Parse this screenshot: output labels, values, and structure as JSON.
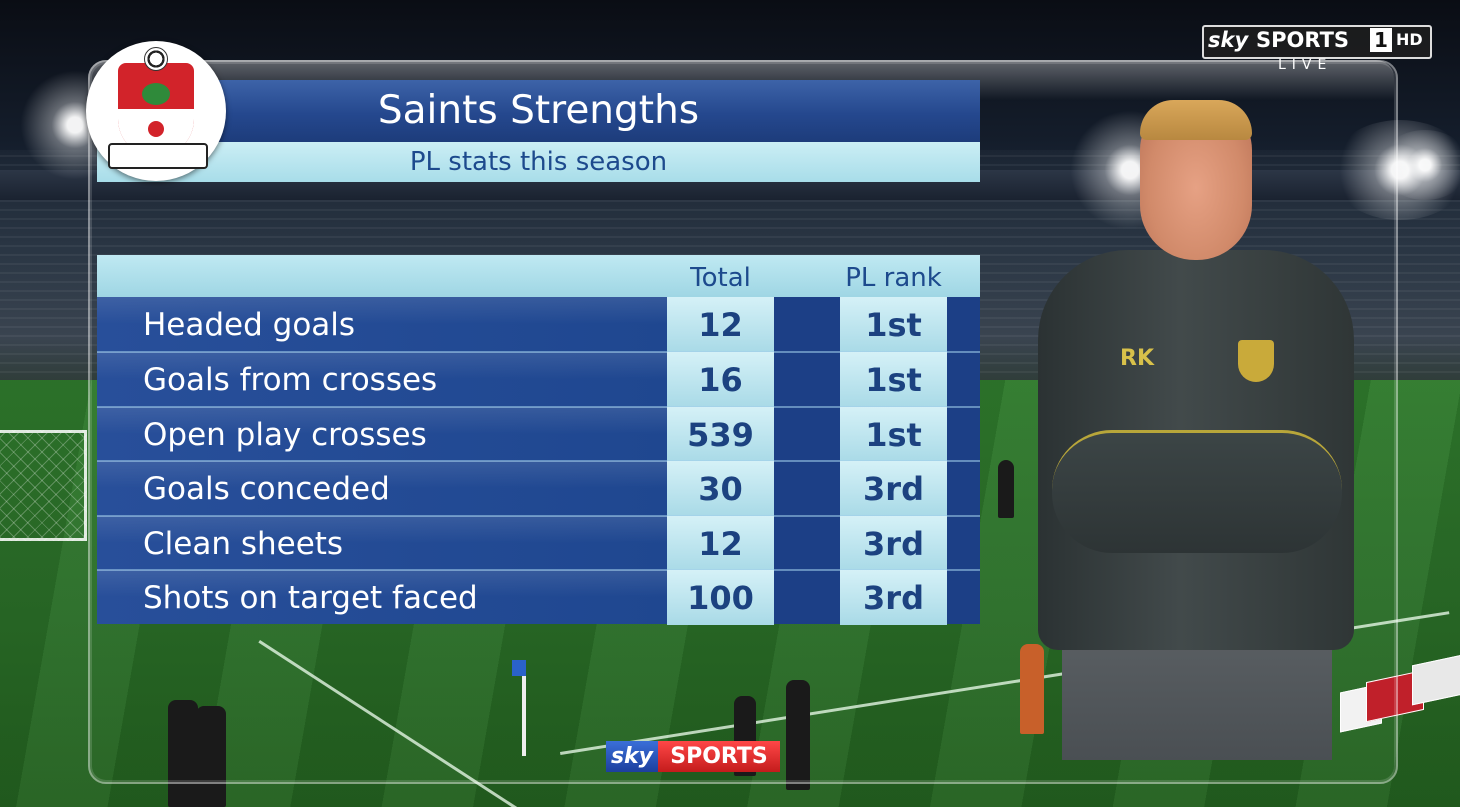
{
  "header": {
    "title": "Saints Strengths",
    "subtitle": "PL stats this season"
  },
  "badge": {
    "text": "SOUTHAMPTON FC"
  },
  "stats": {
    "columns": [
      "Total",
      "PL rank"
    ],
    "rows": [
      {
        "label": "Headed goals",
        "total": "12",
        "rank": "1st"
      },
      {
        "label": "Goals from crosses",
        "total": "16",
        "rank": "1st"
      },
      {
        "label": "Open play crosses",
        "total": "539",
        "rank": "1st"
      },
      {
        "label": "Goals conceded",
        "total": "30",
        "rank": "3rd"
      },
      {
        "label": "Clean sheets",
        "total": "12",
        "rank": "3rd"
      },
      {
        "label": "Shots on target faced",
        "total": "100",
        "rank": "3rd"
      }
    ]
  },
  "channel_bug": {
    "sky": "sky",
    "sports": "SPORTS",
    "number": "1",
    "hd": "HD",
    "live": "LIVE"
  },
  "bottom_logo": {
    "sky": "sky",
    "sports": "SPORTS"
  },
  "manager": {
    "initials": "RK"
  },
  "colors": {
    "title_blue": "#25488e",
    "subtitle_cyan": "#a8dde9",
    "row_blue": "#1f4790",
    "cell_light": "#a9dae7",
    "sky_red": "#c41c1c"
  }
}
